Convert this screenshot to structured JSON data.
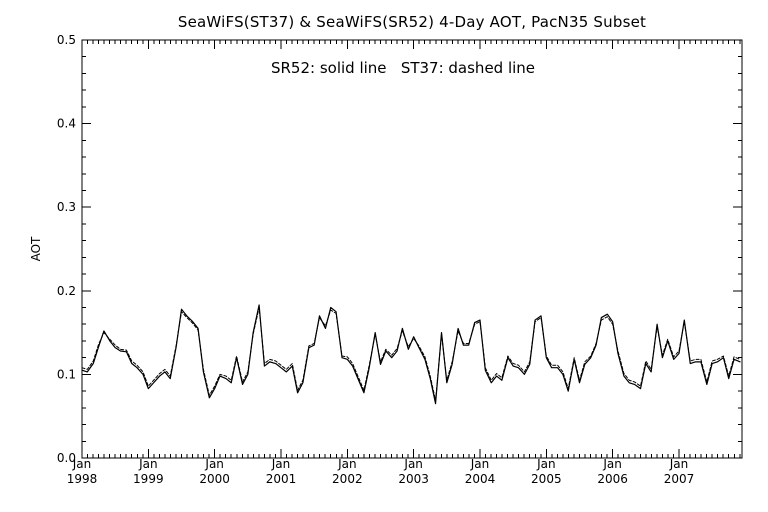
{
  "chart_data": {
    "type": "line",
    "title": "SeaWiFS(ST37) & SeaWiFS(SR52) 4-Day AOT, PacN35 Subset",
    "annotation": "SR52: solid line   ST37: dashed line",
    "ylabel": "AOT",
    "xlabel": "",
    "ylim": [
      0,
      0.5
    ],
    "xlim": [
      1998.0,
      2007.95
    ],
    "grid": false,
    "y_ticks": [
      {
        "value": 0.0,
        "label": "0.0"
      },
      {
        "value": 0.1,
        "label": "0.1"
      },
      {
        "value": 0.2,
        "label": "0.2"
      },
      {
        "value": 0.3,
        "label": "0.3"
      },
      {
        "value": 0.4,
        "label": "0.4"
      },
      {
        "value": 0.5,
        "label": "0.5"
      }
    ],
    "x_ticks": [
      {
        "value": 1998,
        "month": "Jan",
        "year": "1998"
      },
      {
        "value": 1999,
        "month": "Jan",
        "year": "1999"
      },
      {
        "value": 2000,
        "month": "Jan",
        "year": "2000"
      },
      {
        "value": 2001,
        "month": "Jan",
        "year": "2001"
      },
      {
        "value": 2002,
        "month": "Jan",
        "year": "2002"
      },
      {
        "value": 2003,
        "month": "Jan",
        "year": "2003"
      },
      {
        "value": 2004,
        "month": "Jan",
        "year": "2004"
      },
      {
        "value": 2005,
        "month": "Jan",
        "year": "2005"
      },
      {
        "value": 2006,
        "month": "Jan",
        "year": "2006"
      },
      {
        "value": 2007,
        "month": "Jan",
        "year": "2007"
      }
    ],
    "series": [
      {
        "name": "SR52",
        "style": "solid",
        "color": "#000000",
        "points": [
          [
            1998.0,
            0.105
          ],
          [
            1998.08,
            0.103
          ],
          [
            1998.17,
            0.113
          ],
          [
            1998.25,
            0.133
          ],
          [
            1998.33,
            0.152
          ],
          [
            1998.42,
            0.14
          ],
          [
            1998.5,
            0.132
          ],
          [
            1998.58,
            0.128
          ],
          [
            1998.67,
            0.127
          ],
          [
            1998.75,
            0.113
          ],
          [
            1998.83,
            0.108
          ],
          [
            1998.92,
            0.1
          ],
          [
            1999.0,
            0.083
          ],
          [
            1999.08,
            0.09
          ],
          [
            1999.17,
            0.098
          ],
          [
            1999.25,
            0.103
          ],
          [
            1999.33,
            0.095
          ],
          [
            1999.42,
            0.133
          ],
          [
            1999.5,
            0.178
          ],
          [
            1999.58,
            0.17
          ],
          [
            1999.67,
            0.163
          ],
          [
            1999.75,
            0.155
          ],
          [
            1999.83,
            0.103
          ],
          [
            1999.92,
            0.072
          ],
          [
            2000.0,
            0.083
          ],
          [
            2000.08,
            0.098
          ],
          [
            2000.17,
            0.095
          ],
          [
            2000.25,
            0.09
          ],
          [
            2000.33,
            0.12
          ],
          [
            2000.42,
            0.088
          ],
          [
            2000.5,
            0.1
          ],
          [
            2000.58,
            0.15
          ],
          [
            2000.67,
            0.183
          ],
          [
            2000.75,
            0.11
          ],
          [
            2000.83,
            0.115
          ],
          [
            2000.92,
            0.113
          ],
          [
            2001.0,
            0.108
          ],
          [
            2001.08,
            0.103
          ],
          [
            2001.17,
            0.11
          ],
          [
            2001.25,
            0.078
          ],
          [
            2001.33,
            0.09
          ],
          [
            2001.42,
            0.132
          ],
          [
            2001.5,
            0.135
          ],
          [
            2001.58,
            0.17
          ],
          [
            2001.67,
            0.155
          ],
          [
            2001.75,
            0.18
          ],
          [
            2001.83,
            0.175
          ],
          [
            2001.92,
            0.12
          ],
          [
            2002.0,
            0.118
          ],
          [
            2002.08,
            0.11
          ],
          [
            2002.17,
            0.093
          ],
          [
            2002.25,
            0.078
          ],
          [
            2002.33,
            0.108
          ],
          [
            2002.42,
            0.15
          ],
          [
            2002.5,
            0.112
          ],
          [
            2002.58,
            0.128
          ],
          [
            2002.67,
            0.12
          ],
          [
            2002.75,
            0.128
          ],
          [
            2002.83,
            0.155
          ],
          [
            2002.92,
            0.13
          ],
          [
            2003.0,
            0.145
          ],
          [
            2003.08,
            0.132
          ],
          [
            2003.17,
            0.118
          ],
          [
            2003.25,
            0.095
          ],
          [
            2003.33,
            0.065
          ],
          [
            2003.42,
            0.15
          ],
          [
            2003.5,
            0.09
          ],
          [
            2003.58,
            0.112
          ],
          [
            2003.67,
            0.155
          ],
          [
            2003.75,
            0.135
          ],
          [
            2003.83,
            0.135
          ],
          [
            2003.92,
            0.162
          ],
          [
            2004.0,
            0.165
          ],
          [
            2004.08,
            0.105
          ],
          [
            2004.17,
            0.09
          ],
          [
            2004.25,
            0.098
          ],
          [
            2004.33,
            0.093
          ],
          [
            2004.42,
            0.12
          ],
          [
            2004.5,
            0.11
          ],
          [
            2004.58,
            0.108
          ],
          [
            2004.67,
            0.1
          ],
          [
            2004.75,
            0.112
          ],
          [
            2004.83,
            0.165
          ],
          [
            2004.92,
            0.17
          ],
          [
            2005.0,
            0.12
          ],
          [
            2005.08,
            0.108
          ],
          [
            2005.17,
            0.108
          ],
          [
            2005.25,
            0.1
          ],
          [
            2005.33,
            0.08
          ],
          [
            2005.42,
            0.118
          ],
          [
            2005.5,
            0.09
          ],
          [
            2005.58,
            0.112
          ],
          [
            2005.67,
            0.12
          ],
          [
            2005.75,
            0.135
          ],
          [
            2005.83,
            0.168
          ],
          [
            2005.92,
            0.172
          ],
          [
            2006.0,
            0.163
          ],
          [
            2006.08,
            0.125
          ],
          [
            2006.17,
            0.098
          ],
          [
            2006.25,
            0.09
          ],
          [
            2006.33,
            0.088
          ],
          [
            2006.42,
            0.083
          ],
          [
            2006.5,
            0.113
          ],
          [
            2006.58,
            0.103
          ],
          [
            2006.67,
            0.16
          ],
          [
            2006.75,
            0.12
          ],
          [
            2006.83,
            0.14
          ],
          [
            2006.92,
            0.118
          ],
          [
            2007.0,
            0.125
          ],
          [
            2007.08,
            0.165
          ],
          [
            2007.17,
            0.113
          ],
          [
            2007.25,
            0.115
          ],
          [
            2007.33,
            0.115
          ],
          [
            2007.42,
            0.088
          ],
          [
            2007.5,
            0.113
          ],
          [
            2007.58,
            0.115
          ],
          [
            2007.67,
            0.12
          ],
          [
            2007.75,
            0.095
          ],
          [
            2007.83,
            0.118
          ],
          [
            2007.92,
            0.115
          ]
        ]
      },
      {
        "name": "ST37",
        "style": "dashed",
        "color": "#000000",
        "points": [
          [
            1998.0,
            0.108
          ],
          [
            1998.08,
            0.106
          ],
          [
            1998.17,
            0.116
          ],
          [
            1998.25,
            0.136
          ],
          [
            1998.33,
            0.15
          ],
          [
            1998.42,
            0.142
          ],
          [
            1998.5,
            0.135
          ],
          [
            1998.58,
            0.13
          ],
          [
            1998.67,
            0.129
          ],
          [
            1998.75,
            0.116
          ],
          [
            1998.83,
            0.111
          ],
          [
            1998.92,
            0.103
          ],
          [
            1999.0,
            0.086
          ],
          [
            1999.08,
            0.093
          ],
          [
            1999.17,
            0.101
          ],
          [
            1999.25,
            0.106
          ],
          [
            1999.33,
            0.098
          ],
          [
            1999.42,
            0.135
          ],
          [
            1999.5,
            0.175
          ],
          [
            1999.58,
            0.168
          ],
          [
            1999.67,
            0.161
          ],
          [
            1999.75,
            0.153
          ],
          [
            1999.83,
            0.106
          ],
          [
            1999.92,
            0.075
          ],
          [
            2000.0,
            0.086
          ],
          [
            2000.08,
            0.1
          ],
          [
            2000.17,
            0.098
          ],
          [
            2000.25,
            0.093
          ],
          [
            2000.33,
            0.122
          ],
          [
            2000.42,
            0.091
          ],
          [
            2000.5,
            0.103
          ],
          [
            2000.58,
            0.148
          ],
          [
            2000.67,
            0.18
          ],
          [
            2000.75,
            0.113
          ],
          [
            2000.83,
            0.118
          ],
          [
            2000.92,
            0.116
          ],
          [
            2001.0,
            0.111
          ],
          [
            2001.08,
            0.106
          ],
          [
            2001.17,
            0.113
          ],
          [
            2001.25,
            0.081
          ],
          [
            2001.33,
            0.093
          ],
          [
            2001.42,
            0.134
          ],
          [
            2001.5,
            0.137
          ],
          [
            2001.58,
            0.168
          ],
          [
            2001.67,
            0.158
          ],
          [
            2001.75,
            0.177
          ],
          [
            2001.83,
            0.173
          ],
          [
            2001.92,
            0.122
          ],
          [
            2002.0,
            0.121
          ],
          [
            2002.08,
            0.113
          ],
          [
            2002.17,
            0.096
          ],
          [
            2002.25,
            0.081
          ],
          [
            2002.33,
            0.111
          ],
          [
            2002.42,
            0.148
          ],
          [
            2002.5,
            0.115
          ],
          [
            2002.58,
            0.13
          ],
          [
            2002.67,
            0.123
          ],
          [
            2002.75,
            0.131
          ],
          [
            2002.83,
            0.152
          ],
          [
            2002.92,
            0.133
          ],
          [
            2003.0,
            0.143
          ],
          [
            2003.08,
            0.134
          ],
          [
            2003.17,
            0.121
          ],
          [
            2003.25,
            0.098
          ],
          [
            2003.33,
            0.069
          ],
          [
            2003.42,
            0.148
          ],
          [
            2003.5,
            0.093
          ],
          [
            2003.58,
            0.115
          ],
          [
            2003.67,
            0.152
          ],
          [
            2003.75,
            0.137
          ],
          [
            2003.83,
            0.137
          ],
          [
            2003.92,
            0.16
          ],
          [
            2004.0,
            0.163
          ],
          [
            2004.08,
            0.108
          ],
          [
            2004.17,
            0.093
          ],
          [
            2004.25,
            0.101
          ],
          [
            2004.33,
            0.096
          ],
          [
            2004.42,
            0.122
          ],
          [
            2004.5,
            0.113
          ],
          [
            2004.58,
            0.111
          ],
          [
            2004.67,
            0.103
          ],
          [
            2004.75,
            0.115
          ],
          [
            2004.83,
            0.163
          ],
          [
            2004.92,
            0.168
          ],
          [
            2005.0,
            0.122
          ],
          [
            2005.08,
            0.111
          ],
          [
            2005.17,
            0.111
          ],
          [
            2005.25,
            0.103
          ],
          [
            2005.33,
            0.083
          ],
          [
            2005.42,
            0.12
          ],
          [
            2005.5,
            0.093
          ],
          [
            2005.58,
            0.115
          ],
          [
            2005.67,
            0.122
          ],
          [
            2005.75,
            0.137
          ],
          [
            2005.83,
            0.165
          ],
          [
            2005.92,
            0.169
          ],
          [
            2006.0,
            0.16
          ],
          [
            2006.08,
            0.128
          ],
          [
            2006.17,
            0.101
          ],
          [
            2006.25,
            0.093
          ],
          [
            2006.33,
            0.091
          ],
          [
            2006.42,
            0.086
          ],
          [
            2006.5,
            0.116
          ],
          [
            2006.58,
            0.106
          ],
          [
            2006.67,
            0.157
          ],
          [
            2006.75,
            0.123
          ],
          [
            2006.83,
            0.142
          ],
          [
            2006.92,
            0.121
          ],
          [
            2007.0,
            0.128
          ],
          [
            2007.08,
            0.163
          ],
          [
            2007.17,
            0.116
          ],
          [
            2007.25,
            0.118
          ],
          [
            2007.33,
            0.118
          ],
          [
            2007.42,
            0.091
          ],
          [
            2007.5,
            0.116
          ],
          [
            2007.58,
            0.118
          ],
          [
            2007.67,
            0.122
          ],
          [
            2007.75,
            0.098
          ],
          [
            2007.83,
            0.121
          ],
          [
            2007.92,
            0.118
          ]
        ]
      }
    ]
  }
}
